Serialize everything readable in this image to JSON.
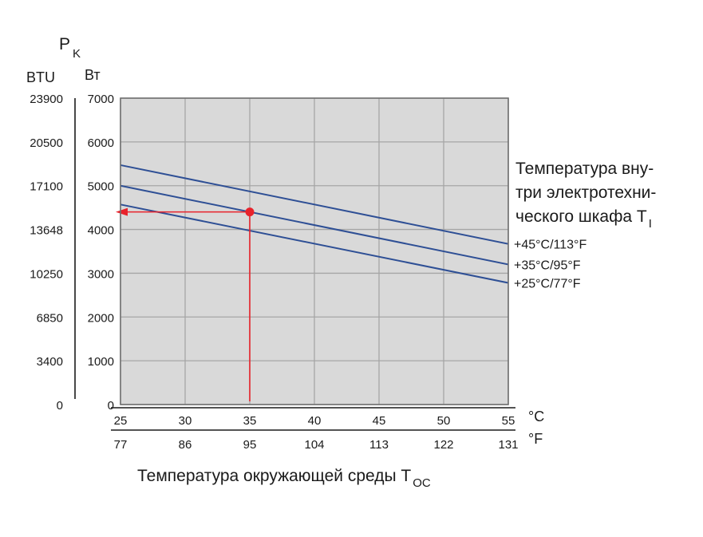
{
  "chart_data": {
    "type": "line",
    "y_symbol": "P",
    "y_symbol_sub": "K",
    "y_unit_watts": "Вт",
    "y_unit_btu": "BTU",
    "yticks_watts": [
      "7000",
      "6000",
      "5000",
      "4000",
      "3000",
      "2000",
      "1000",
      "0"
    ],
    "yticks_btu": [
      "23900",
      "20500",
      "17100",
      "13648",
      "10250",
      "6850",
      "3400",
      "0"
    ],
    "ylim": [
      0,
      7000
    ],
    "xlim": [
      25,
      55
    ],
    "xticks_c": [
      "25",
      "30",
      "35",
      "40",
      "45",
      "50",
      "55"
    ],
    "xticks_f": [
      "77",
      "86",
      "95",
      "104",
      "113",
      "122",
      "131"
    ],
    "x_unit_c": "°C",
    "x_unit_f": "°F",
    "xlabel_main": "Температура окружающей среды T",
    "xlabel_sub": "OC",
    "grid": true,
    "legend_title_lines": [
      "Температура вну-",
      "три электротехни-",
      "ческого шкафа T"
    ],
    "legend_title_sub": "I",
    "series": [
      {
        "name": "+45°C/113°F",
        "x": [
          25,
          55
        ],
        "y": [
          5470,
          3670
        ]
      },
      {
        "name": "+35°C/95°F",
        "x": [
          25,
          55
        ],
        "y": [
          5000,
          3200
        ]
      },
      {
        "name": "+25°C/77°F",
        "x": [
          25,
          55
        ],
        "y": [
          4570,
          2780
        ]
      }
    ],
    "annotation": {
      "x": 35,
      "y": 4400
    },
    "colors": {
      "plot_bg": "#d9d9d9",
      "grid": "#a6a6a6",
      "frame": "#707070",
      "series": "#2e4f95",
      "annotation": "#e8222b"
    }
  }
}
